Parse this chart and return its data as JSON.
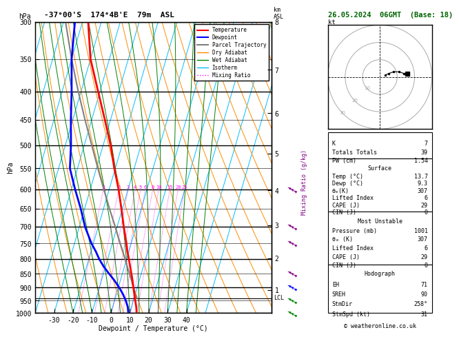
{
  "title_left": "-37°00'S  174°4B'E  79m  ASL",
  "title_right": "26.05.2024  06GMT  (Base: 18)",
  "xlabel": "Dewpoint / Temperature (°C)",
  "ylabel_left": "hPa",
  "pressure_levels": [
    300,
    350,
    400,
    450,
    500,
    550,
    600,
    650,
    700,
    750,
    800,
    850,
    900,
    950,
    1000
  ],
  "temp_ticks": [
    -30,
    -20,
    -10,
    0,
    10,
    20,
    30,
    40
  ],
  "km_ticks": [
    1,
    2,
    3,
    4,
    5,
    6,
    7,
    8
  ],
  "km_pressures": [
    907,
    795,
    692,
    598,
    512,
    433,
    361,
    295
  ],
  "lcl_pressure": 940,
  "mixing_ratio_values": [
    1,
    2,
    3,
    4,
    5,
    6,
    8,
    10,
    15,
    20,
    25
  ],
  "temp_profile_pressure": [
    1001,
    975,
    950,
    925,
    900,
    875,
    850,
    825,
    800,
    775,
    750,
    700,
    650,
    600,
    550,
    500,
    450,
    400,
    350,
    300
  ],
  "temp_profile_temp": [
    13.7,
    12.5,
    11.0,
    9.5,
    8.0,
    6.5,
    4.8,
    3.0,
    1.2,
    -0.8,
    -2.5,
    -6.5,
    -10.5,
    -15.0,
    -20.5,
    -26.0,
    -33.0,
    -41.0,
    -50.0,
    -57.0
  ],
  "dewp_profile_pressure": [
    1001,
    975,
    950,
    925,
    900,
    875,
    850,
    825,
    800,
    775,
    750,
    700,
    650,
    600,
    550,
    500,
    450,
    400,
    350,
    300
  ],
  "dewp_profile_temp": [
    9.3,
    8.0,
    6.0,
    3.5,
    0.5,
    -3.0,
    -7.0,
    -11.0,
    -14.5,
    -17.5,
    -21.0,
    -27.0,
    -32.0,
    -38.0,
    -44.0,
    -47.0,
    -51.0,
    -55.0,
    -60.0,
    -64.0
  ],
  "parcel_profile_pressure": [
    940,
    925,
    900,
    875,
    850,
    825,
    800,
    775,
    750,
    700,
    650,
    600,
    550,
    500,
    450,
    400,
    350,
    300
  ],
  "parcel_profile_temp": [
    11.5,
    10.0,
    8.0,
    6.0,
    3.8,
    1.5,
    -0.8,
    -3.2,
    -5.8,
    -11.0,
    -16.8,
    -22.8,
    -29.2,
    -36.0,
    -43.5,
    -51.5,
    -60.0,
    -69.0
  ],
  "color_temp": "#ff0000",
  "color_dewp": "#0000ff",
  "color_parcel": "#808080",
  "color_dry_adiabat": "#ff8c00",
  "color_wet_adiabat": "#008000",
  "color_isotherm": "#00bfff",
  "color_mix_ratio": "#ff00ff",
  "color_background": "#ffffff",
  "K_index": 7,
  "totals_totals": 39,
  "PW": 1.54,
  "theta_e_surface": 307,
  "lifted_index_surface": 6,
  "CAPE_surface": 29,
  "CIN_surface": 0,
  "MU_pressure": 1001,
  "MU_theta_e": 307,
  "MU_lifted_index": 6,
  "MU_CAPE": 29,
  "MU_CIN": 0,
  "EH": 71,
  "SREH": 90,
  "StmDir": 258,
  "StmSpd": 31,
  "surface_temp": 13.7,
  "surface_dewp": 9.3,
  "wind_barb_pressures": [
    600,
    700,
    750,
    850,
    900,
    950,
    1001
  ],
  "wind_barb_colors": [
    "#800080",
    "#800080",
    "#800080",
    "#800080",
    "#0000ff",
    "#008000",
    "#008000"
  ]
}
